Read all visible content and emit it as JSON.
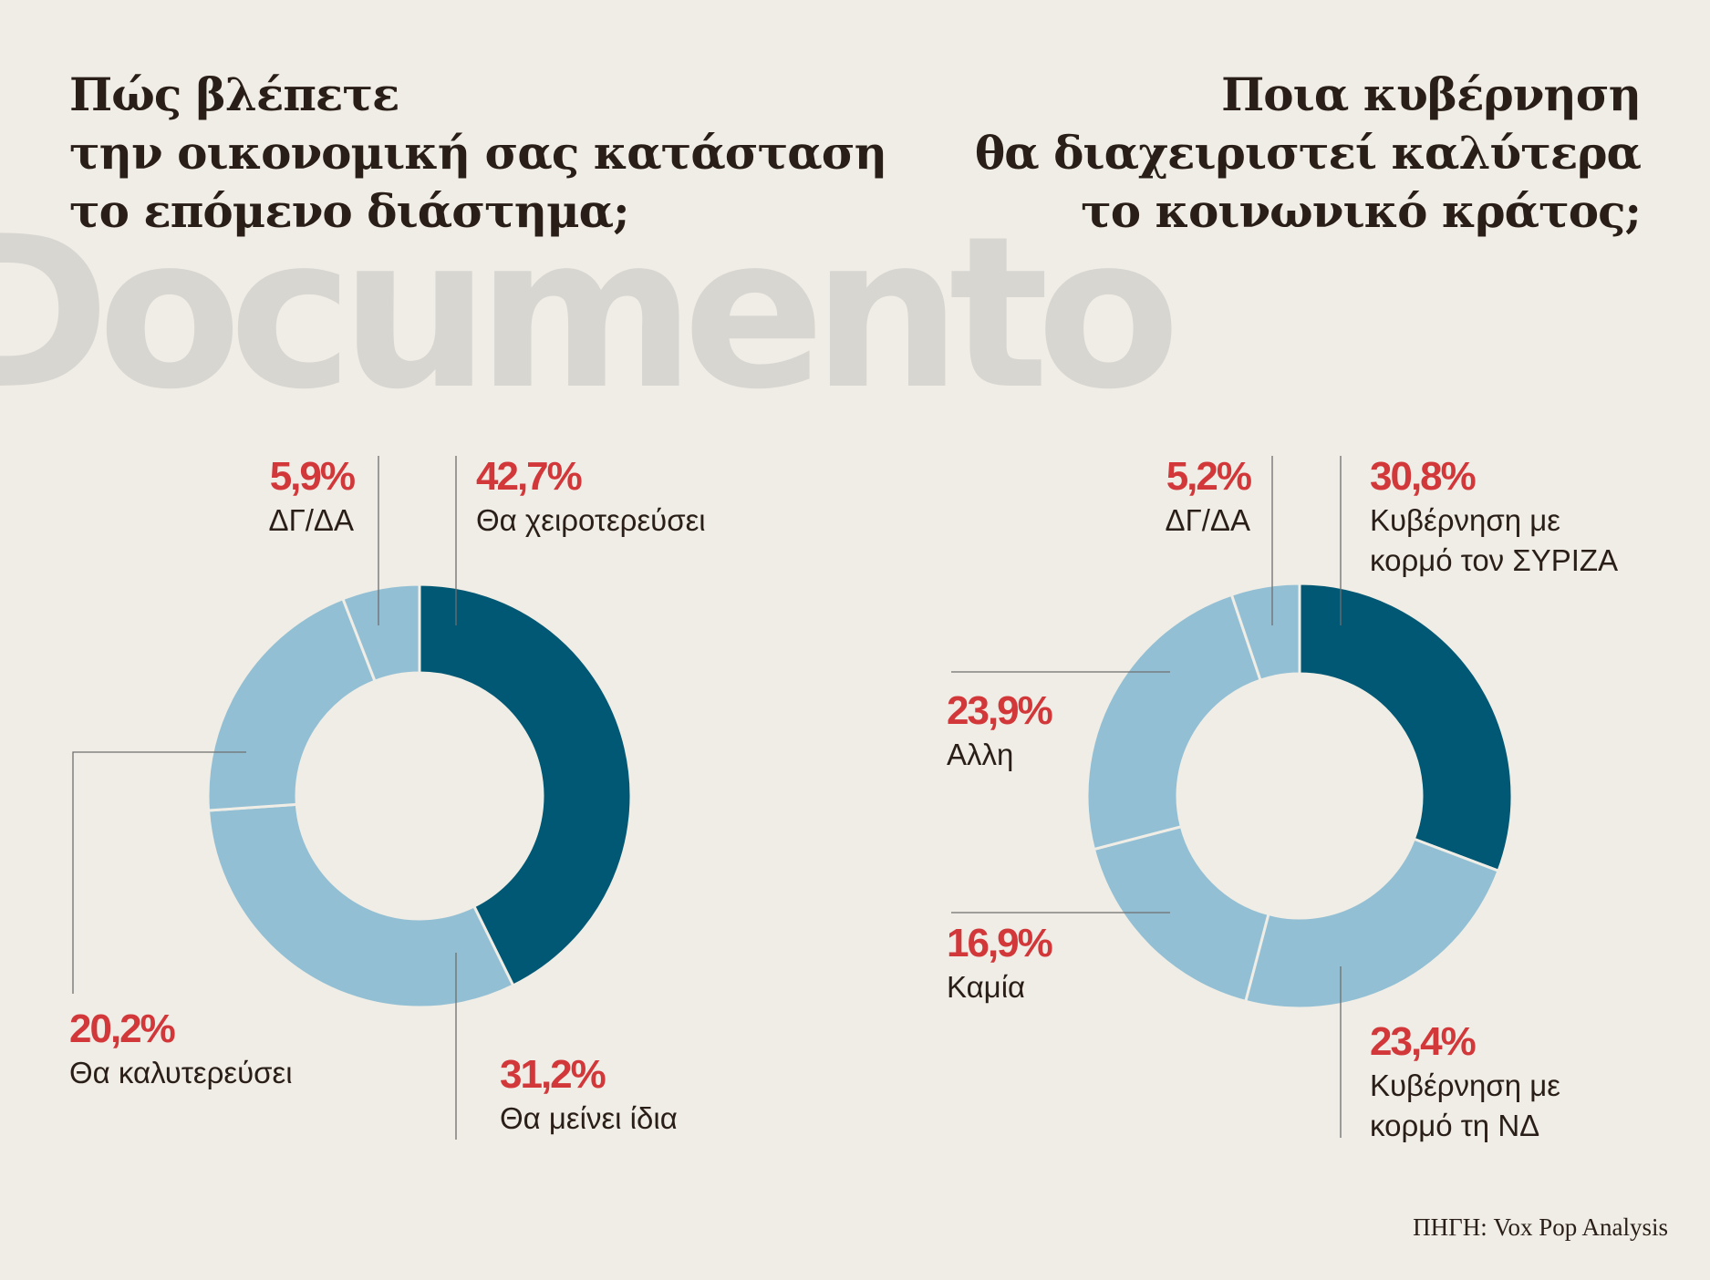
{
  "watermark": "Documento",
  "source": "ΠΗΓΗ: Vox Pop Analysis",
  "colors": {
    "background": "#efede5",
    "dark_slice": "#005874",
    "light_slice": "#92bfd4",
    "percent_text": "#d2373a",
    "leader_line": "#6f6f6f"
  },
  "chart_data": [
    {
      "type": "pie",
      "donut": true,
      "title_lines": [
        "Πώς βλέπετε",
        "την οικονομική σας κατάσταση",
        "το επόμενο διάστημα;"
      ],
      "slices": [
        {
          "label": "Θα χειροτερεύσει",
          "value": 42.7,
          "value_label": "42,7%",
          "color": "#005874"
        },
        {
          "label": "Θα μείνει ίδια",
          "value": 31.2,
          "value_label": "31,2%",
          "color": "#92bfd4"
        },
        {
          "label": "Θα καλυτερεύσει",
          "value": 20.2,
          "value_label": "20,2%",
          "color": "#92bfd4"
        },
        {
          "label": "ΔΓ/ΔΑ",
          "value": 5.9,
          "value_label": "5,9%",
          "color": "#92bfd4"
        }
      ]
    },
    {
      "type": "pie",
      "donut": true,
      "title_lines": [
        "Ποια κυβέρνηση",
        "θα διαχειριστεί καλύτερα",
        "το κοινωνικό κράτος;"
      ],
      "slices": [
        {
          "label": "Κυβέρνηση με κορμό τον ΣΥΡΙΖΑ",
          "label_lines": [
            "Κυβέρνηση με",
            "κορμό τον ΣΥΡΙΖΑ"
          ],
          "value": 30.8,
          "value_label": "30,8%",
          "color": "#005874"
        },
        {
          "label": "Κυβέρνηση με κορμό τη ΝΔ",
          "label_lines": [
            "Κυβέρνηση με",
            "κορμό τη ΝΔ"
          ],
          "value": 23.4,
          "value_label": "23,4%",
          "color": "#92bfd4"
        },
        {
          "label": "Καμία",
          "value": 16.9,
          "value_label": "16,9%",
          "color": "#92bfd4"
        },
        {
          "label": "Αλλη",
          "value": 23.9,
          "value_label": "23,9%",
          "color": "#92bfd4"
        },
        {
          "label": "ΔΓ/ΔΑ",
          "value": 5.2,
          "value_label": "5,2%",
          "color": "#92bfd4"
        }
      ]
    }
  ]
}
